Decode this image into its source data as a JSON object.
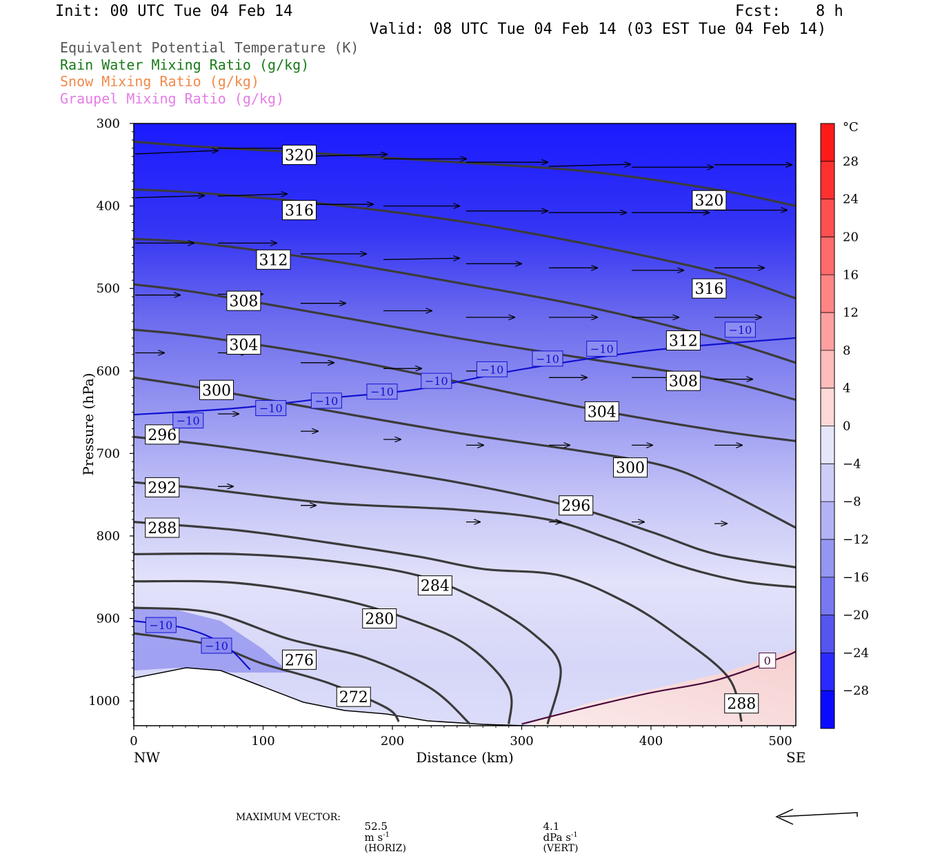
{
  "header": {
    "init": "Init: 00 UTC Tue 04 Feb 14",
    "fcst_label": "Fcst:",
    "fcst_value": "8 h",
    "valid": "Valid: 08 UTC Tue 04 Feb 14 (03 EST Tue 04 Feb 14)"
  },
  "legend": [
    {
      "text": "Equivalent Potential Temperature (K)",
      "color": "#555555"
    },
    {
      "text": "Rain Water Mixing Ratio (g/kg)",
      "color": "#1a7a1a"
    },
    {
      "text": "Snow Mixing Ratio (g/kg)",
      "color": "#f08a4b"
    },
    {
      "text": "Graupel Mixing Ratio (g/kg)",
      "color": "#e57de6"
    }
  ],
  "footer": {
    "max_vector_label": "MAXIMUM VECTOR:",
    "horiz_value": "52.5",
    "horiz_unit": "m s",
    "horiz_exp": "-1",
    "horiz_tag": "(HORIZ)",
    "vert_value": "4.1",
    "vert_unit": "dPa s",
    "vert_exp": "-1",
    "vert_tag": "(VERT)"
  },
  "chart_data": {
    "type": "cross-section contour",
    "xlabel": "Distance (km)",
    "ylabel": "Pressure (hPa)",
    "xlim": [
      0,
      512
    ],
    "ylim": [
      1030,
      300
    ],
    "x_ticks": [
      0,
      100,
      200,
      300,
      400,
      500
    ],
    "y_ticks": [
      300,
      400,
      500,
      600,
      700,
      800,
      900,
      1000
    ],
    "x_end_labels": {
      "left": "NW",
      "right": "SE"
    },
    "colorbar": {
      "unit": "°C",
      "labels": [
        "28",
        "24",
        "20",
        "16",
        "12",
        "8",
        "4",
        "0",
        "−4",
        "−8",
        "−12",
        "−16",
        "−20",
        "−24",
        "−28"
      ],
      "values": [
        28,
        24,
        20,
        16,
        12,
        8,
        4,
        0,
        -4,
        -8,
        -12,
        -16,
        -20,
        -24,
        -28
      ]
    },
    "theta_e_contours": [
      {
        "label": "320",
        "points": [
          [
            0,
            322
          ],
          [
            50,
            328
          ],
          [
            150,
            337
          ],
          [
            250,
            347
          ],
          [
            350,
            358
          ],
          [
            450,
            380
          ],
          [
            512,
            400
          ]
        ]
      },
      {
        "label": "316",
        "points": [
          [
            0,
            380
          ],
          [
            50,
            384
          ],
          [
            150,
            398
          ],
          [
            250,
            418
          ],
          [
            350,
            446
          ],
          [
            450,
            480
          ],
          [
            512,
            512
          ]
        ]
      },
      {
        "label": "312",
        "points": [
          [
            0,
            440
          ],
          [
            50,
            445
          ],
          [
            150,
            466
          ],
          [
            250,
            493
          ],
          [
            350,
            522
          ],
          [
            450,
            560
          ],
          [
            512,
            590
          ]
        ]
      },
      {
        "label": "308",
        "points": [
          [
            0,
            495
          ],
          [
            50,
            505
          ],
          [
            150,
            532
          ],
          [
            250,
            560
          ],
          [
            350,
            585
          ],
          [
            450,
            610
          ],
          [
            512,
            635
          ]
        ]
      },
      {
        "label": "304",
        "points": [
          [
            0,
            550
          ],
          [
            50,
            558
          ],
          [
            150,
            582
          ],
          [
            250,
            613
          ],
          [
            350,
            645
          ],
          [
            450,
            672
          ],
          [
            512,
            685
          ]
        ]
      },
      {
        "label": "300",
        "points": [
          [
            0,
            608
          ],
          [
            50,
            620
          ],
          [
            150,
            648
          ],
          [
            250,
            675
          ],
          [
            350,
            698
          ],
          [
            410,
            715
          ],
          [
            450,
            740
          ],
          [
            512,
            790
          ]
        ]
      },
      {
        "label": "296",
        "points": [
          [
            0,
            680
          ],
          [
            60,
            690
          ],
          [
            150,
            710
          ],
          [
            250,
            735
          ],
          [
            340,
            765
          ],
          [
            400,
            795
          ],
          [
            450,
            822
          ],
          [
            512,
            838
          ]
        ]
      },
      {
        "label": "292",
        "points": [
          [
            0,
            735
          ],
          [
            50,
            742
          ],
          [
            150,
            760
          ],
          [
            250,
            768
          ],
          [
            320,
            780
          ],
          [
            370,
            805
          ],
          [
            420,
            835
          ],
          [
            470,
            855
          ],
          [
            512,
            862
          ]
        ]
      },
      {
        "label": "288",
        "points": [
          [
            0,
            783
          ],
          [
            80,
            793
          ],
          [
            150,
            808
          ],
          [
            220,
            825
          ],
          [
            270,
            840
          ],
          [
            330,
            848
          ],
          [
            380,
            880
          ],
          [
            420,
            920
          ],
          [
            460,
            972
          ],
          [
            470,
            1025
          ]
        ]
      },
      {
        "label": "284",
        "points": [
          [
            0,
            822
          ],
          [
            80,
            822
          ],
          [
            150,
            830
          ],
          [
            220,
            848
          ],
          [
            270,
            880
          ],
          [
            310,
            920
          ],
          [
            330,
            960
          ],
          [
            320,
            1028
          ]
        ]
      },
      {
        "label": "280",
        "points": [
          [
            0,
            855
          ],
          [
            80,
            857
          ],
          [
            160,
            877
          ],
          [
            220,
            905
          ],
          [
            260,
            935
          ],
          [
            290,
            985
          ],
          [
            290,
            1028
          ]
        ]
      },
      {
        "label": "276",
        "points": [
          [
            0,
            887
          ],
          [
            60,
            893
          ],
          [
            120,
            925
          ],
          [
            180,
            948
          ],
          [
            230,
            985
          ],
          [
            260,
            1028
          ]
        ]
      },
      {
        "label": "272",
        "points": [
          [
            0,
            918
          ],
          [
            60,
            932
          ],
          [
            100,
            955
          ],
          [
            150,
            978
          ],
          [
            195,
            1008
          ],
          [
            205,
            1025
          ]
        ]
      }
    ],
    "temperature_contours": [
      {
        "label": "-10",
        "points": [
          [
            0,
            653
          ],
          [
            80,
            645
          ],
          [
            150,
            633
          ],
          [
            220,
            622
          ],
          [
            300,
            598
          ],
          [
            400,
            575
          ],
          [
            512,
            560
          ]
        ]
      },
      {
        "label": "-10",
        "points": [
          [
            0,
            903
          ],
          [
            40,
            912
          ],
          [
            70,
            932
          ],
          [
            90,
            962
          ]
        ]
      },
      {
        "label": "0",
        "points": [
          [
            300,
            1028
          ],
          [
            350,
            1008
          ],
          [
            400,
            990
          ],
          [
            450,
            975
          ],
          [
            500,
            948
          ],
          [
            512,
            940
          ]
        ]
      }
    ],
    "theta_e_labels": [
      {
        "text": "320",
        "x": 128,
        "y": 338
      },
      {
        "text": "320",
        "x": 445,
        "y": 393
      },
      {
        "text": "316",
        "x": 128,
        "y": 405
      },
      {
        "text": "316",
        "x": 445,
        "y": 500
      },
      {
        "text": "312",
        "x": 108,
        "y": 465
      },
      {
        "text": "312",
        "x": 425,
        "y": 563
      },
      {
        "text": "308",
        "x": 85,
        "y": 515
      },
      {
        "text": "308",
        "x": 425,
        "y": 612
      },
      {
        "text": "304",
        "x": 85,
        "y": 568
      },
      {
        "text": "304",
        "x": 362,
        "y": 649
      },
      {
        "text": "300",
        "x": 64,
        "y": 623
      },
      {
        "text": "300",
        "x": 384,
        "y": 717
      },
      {
        "text": "296",
        "x": 22,
        "y": 677
      },
      {
        "text": "296",
        "x": 342,
        "y": 763
      },
      {
        "text": "292",
        "x": 22,
        "y": 741
      },
      {
        "text": "288",
        "x": 22,
        "y": 790
      },
      {
        "text": "288",
        "x": 470,
        "y": 1003
      },
      {
        "text": "284",
        "x": 233,
        "y": 860
      },
      {
        "text": "280",
        "x": 190,
        "y": 900
      },
      {
        "text": "276",
        "x": 128,
        "y": 950
      },
      {
        "text": "272",
        "x": 170,
        "y": 995
      }
    ],
    "temperature_labels": [
      {
        "text": "−10",
        "x": 42,
        "y": 660
      },
      {
        "text": "−10",
        "x": 106,
        "y": 645
      },
      {
        "text": "−10",
        "x": 149,
        "y": 636
      },
      {
        "text": "−10",
        "x": 192,
        "y": 625
      },
      {
        "text": "−10",
        "x": 234,
        "y": 612
      },
      {
        "text": "−10",
        "x": 277,
        "y": 598
      },
      {
        "text": "−10",
        "x": 320,
        "y": 585
      },
      {
        "text": "−10",
        "x": 362,
        "y": 573
      },
      {
        "text": "−10",
        "x": 469,
        "y": 550
      },
      {
        "text": "−10",
        "x": 21,
        "y": 908
      },
      {
        "text": "−10",
        "x": 64,
        "y": 933
      },
      {
        "text": "0",
        "x": 490,
        "y": 951
      }
    ],
    "wind_vectors": [
      {
        "x": 0,
        "p": 337,
        "len": 120,
        "dp": -5
      },
      {
        "x": 64,
        "p": 330,
        "len": 120,
        "dp": 0
      },
      {
        "x": 128,
        "p": 340,
        "len": 125,
        "dp": -3
      },
      {
        "x": 192,
        "p": 343,
        "len": 120,
        "dp": 0
      },
      {
        "x": 256,
        "p": 347,
        "len": 118,
        "dp": 0
      },
      {
        "x": 320,
        "p": 352,
        "len": 118,
        "dp": -3
      },
      {
        "x": 384,
        "p": 353,
        "len": 118,
        "dp": 0
      },
      {
        "x": 448,
        "p": 350,
        "len": 112,
        "dp": 0
      },
      {
        "x": 512,
        "p": 350,
        "len": 110,
        "dp": 0
      },
      {
        "x": 0,
        "p": 390,
        "len": 100,
        "dp": -3
      },
      {
        "x": 64,
        "p": 388,
        "len": 100,
        "dp": -3
      },
      {
        "x": 128,
        "p": 398,
        "len": 105,
        "dp": 0
      },
      {
        "x": 192,
        "p": 400,
        "len": 110,
        "dp": 0
      },
      {
        "x": 256,
        "p": 406,
        "len": 118,
        "dp": 0
      },
      {
        "x": 320,
        "p": 408,
        "len": 112,
        "dp": 0
      },
      {
        "x": 384,
        "p": 408,
        "len": 112,
        "dp": 0
      },
      {
        "x": 448,
        "p": 405,
        "len": 105,
        "dp": 0
      },
      {
        "x": 512,
        "p": 405,
        "len": 95,
        "dp": 0
      },
      {
        "x": 0,
        "p": 445,
        "len": 85,
        "dp": 0
      },
      {
        "x": 64,
        "p": 445,
        "len": 85,
        "dp": 0
      },
      {
        "x": 128,
        "p": 458,
        "len": 95,
        "dp": 0
      },
      {
        "x": 192,
        "p": 465,
        "len": 110,
        "dp": -2
      },
      {
        "x": 256,
        "p": 470,
        "len": 80,
        "dp": 0
      },
      {
        "x": 320,
        "p": 475,
        "len": 70,
        "dp": 0
      },
      {
        "x": 384,
        "p": 478,
        "len": 75,
        "dp": 0
      },
      {
        "x": 448,
        "p": 475,
        "len": 72,
        "dp": 0
      },
      {
        "x": 0,
        "p": 508,
        "len": 65,
        "dp": 0
      },
      {
        "x": 64,
        "p": 507,
        "len": 65,
        "dp": 0
      },
      {
        "x": 128,
        "p": 518,
        "len": 65,
        "dp": 0
      },
      {
        "x": 192,
        "p": 527,
        "len": 70,
        "dp": 0
      },
      {
        "x": 256,
        "p": 535,
        "len": 70,
        "dp": 0
      },
      {
        "x": 320,
        "p": 535,
        "len": 70,
        "dp": 0
      },
      {
        "x": 384,
        "p": 535,
        "len": 68,
        "dp": 0
      },
      {
        "x": 448,
        "p": 535,
        "len": 68,
        "dp": 0
      },
      {
        "x": 0,
        "p": 578,
        "len": 42,
        "dp": 0
      },
      {
        "x": 64,
        "p": 578,
        "len": 42,
        "dp": 0
      },
      {
        "x": 128,
        "p": 590,
        "len": 48,
        "dp": 0
      },
      {
        "x": 192,
        "p": 597,
        "len": 55,
        "dp": 0
      },
      {
        "x": 256,
        "p": 600,
        "len": 58,
        "dp": 0
      },
      {
        "x": 320,
        "p": 608,
        "len": 55,
        "dp": 0
      },
      {
        "x": 384,
        "p": 608,
        "len": 58,
        "dp": 0
      },
      {
        "x": 448,
        "p": 610,
        "len": 55,
        "dp": 0
      },
      {
        "x": 64,
        "p": 652,
        "len": 30,
        "dp": 0
      },
      {
        "x": 128,
        "p": 673,
        "len": 25,
        "dp": 0
      },
      {
        "x": 192,
        "p": 683,
        "len": 25,
        "dp": 0
      },
      {
        "x": 256,
        "p": 690,
        "len": 25,
        "dp": 0
      },
      {
        "x": 320,
        "p": 690,
        "len": 30,
        "dp": 0
      },
      {
        "x": 384,
        "p": 690,
        "len": 30,
        "dp": 0
      },
      {
        "x": 448,
        "p": 690,
        "len": 40,
        "dp": 0
      },
      {
        "x": 64,
        "p": 740,
        "len": 22,
        "dp": 0
      },
      {
        "x": 128,
        "p": 763,
        "len": 22,
        "dp": 0
      },
      {
        "x": 256,
        "p": 783,
        "len": 20,
        "dp": 0
      },
      {
        "x": 320,
        "p": 783,
        "len": 18,
        "dp": 0
      },
      {
        "x": 384,
        "p": 783,
        "len": 18,
        "dp": 0
      },
      {
        "x": 448,
        "p": 785,
        "len": 18,
        "dp": 0
      }
    ]
  }
}
